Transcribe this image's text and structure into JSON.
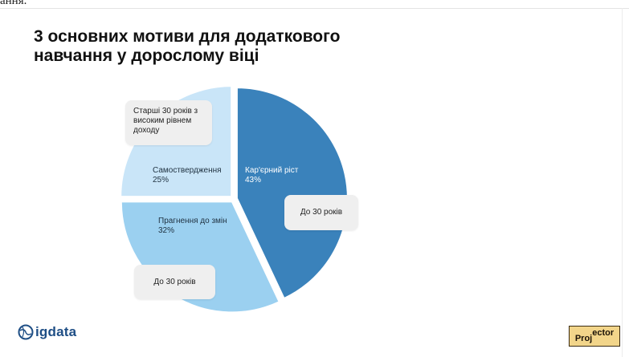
{
  "top_fragment": "ання.",
  "title_lines": [
    "3 основних мотиви для додаткового",
    "навчання у дорослому віці"
  ],
  "chart_data": {
    "type": "pie",
    "slices": [
      {
        "label": "Кар'єрний ріст",
        "value": 43,
        "value_text": "43%",
        "color": "#3a82bb",
        "callout": "До 30 років"
      },
      {
        "label": "Прагнення до змін",
        "value": 32,
        "value_text": "32%",
        "color": "#9bd0f0",
        "callout": "До 30 років"
      },
      {
        "label": "Самоствердження",
        "value": 25,
        "value_text": "25%",
        "color": "#c9e5f8",
        "callout": "Старші 30 років з високим рівнем доходу"
      }
    ]
  },
  "callout_lines": {
    "slice3": [
      "Старші 30 років з",
      "високим рівнем",
      "доходу"
    ]
  },
  "logos": {
    "bigdata": "igdata",
    "projector_pr": "Proj",
    "projector_ector": "ector"
  }
}
